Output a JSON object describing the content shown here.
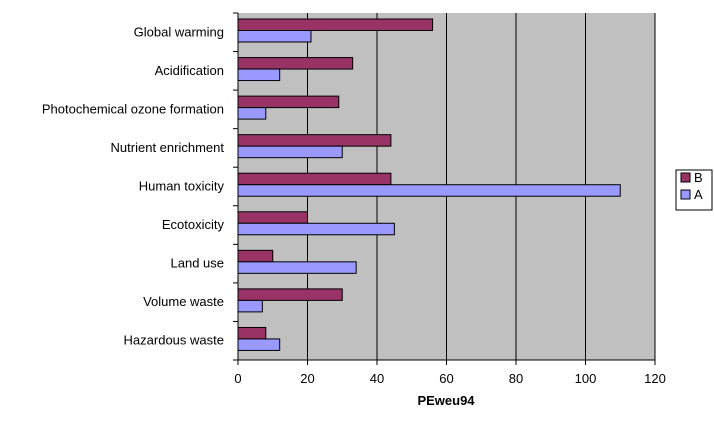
{
  "chart_data": {
    "type": "bar",
    "orientation": "horizontal",
    "categories": [
      "Global warming",
      "Acidification",
      "Photochemical ozone formation",
      "Nutrient enrichment",
      "Human toxicity",
      "Ecotoxicity",
      "Land use",
      "Volume waste",
      "Hazardous waste"
    ],
    "series": [
      {
        "name": "B",
        "values": [
          56,
          33,
          29,
          44,
          44,
          20,
          10,
          30,
          8
        ],
        "color": "#993366"
      },
      {
        "name": "A",
        "values": [
          21,
          12,
          8,
          30,
          110,
          45,
          34,
          7,
          12
        ],
        "color": "#9999ff"
      }
    ],
    "xlabel": "PEweu94",
    "ylabel": "",
    "title": "",
    "xlim": [
      0,
      120
    ],
    "xticks": [
      0,
      20,
      40,
      60,
      80,
      100,
      120
    ],
    "grid": true,
    "plot_background": "#c0c0c0",
    "legend_position": "right"
  }
}
